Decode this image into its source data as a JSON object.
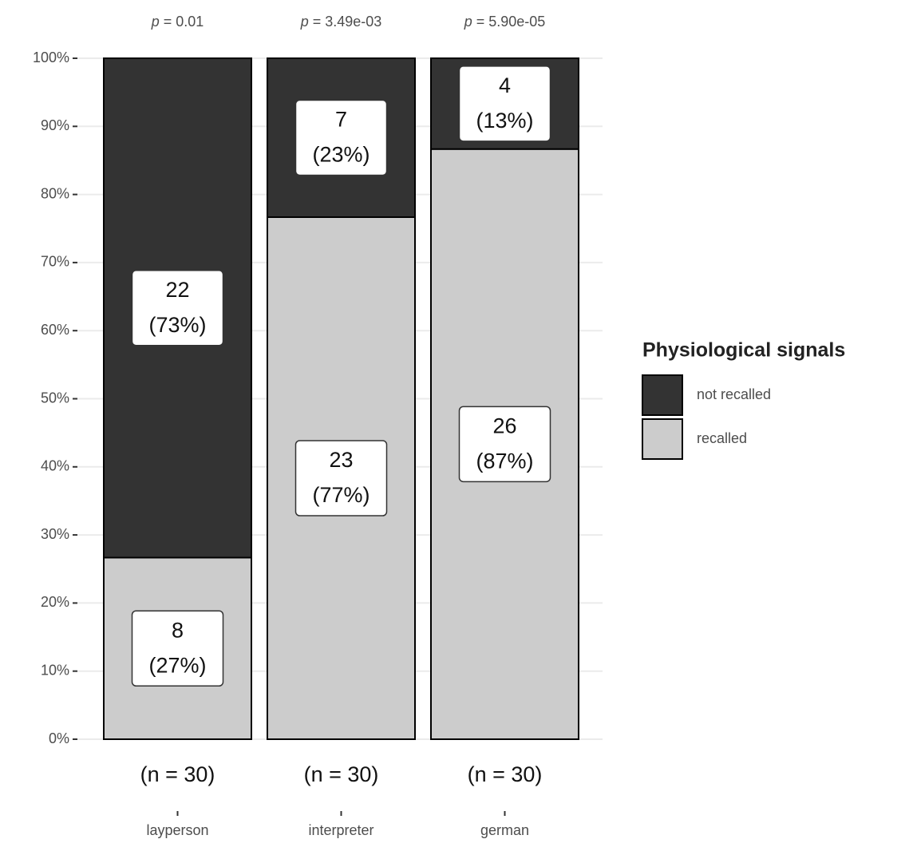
{
  "chart_data": {
    "type": "stacked_bar",
    "categories": [
      "layperson",
      "interpreter",
      "german"
    ],
    "annotation_symbol": "p",
    "annotations": [
      "= 0.01",
      "= 3.49e-03",
      "= 5.90e-05"
    ],
    "n_labels": [
      "(n = 30)",
      "(n = 30)",
      "(n = 30)"
    ],
    "series": [
      {
        "name": "not recalled",
        "color": "#333333",
        "values": [
          73.33,
          23.33,
          13.33
        ],
        "counts": [
          22,
          7,
          4
        ],
        "value_labels": [
          "(73%)",
          "(23%)",
          "(13%)"
        ]
      },
      {
        "name": "recalled",
        "color": "#cccccc",
        "values": [
          26.67,
          76.67,
          86.67
        ],
        "counts": [
          8,
          23,
          26
        ],
        "value_labels": [
          "(27%)",
          "(77%)",
          "(87%)"
        ]
      }
    ],
    "legend_title": "Physiological signals",
    "legend_position": "right",
    "ylim": [
      0,
      100
    ],
    "yticks": [
      {
        "value": 0,
        "label": "0%"
      },
      {
        "value": 10,
        "label": "10%"
      },
      {
        "value": 20,
        "label": "20%"
      },
      {
        "value": 30,
        "label": "30%"
      },
      {
        "value": 40,
        "label": "40%"
      },
      {
        "value": 50,
        "label": "50%"
      },
      {
        "value": 60,
        "label": "60%"
      },
      {
        "value": 70,
        "label": "70%"
      },
      {
        "value": 80,
        "label": "80%"
      },
      {
        "value": 90,
        "label": "90%"
      },
      {
        "value": 100,
        "label": "100%"
      }
    ],
    "grid": true
  }
}
